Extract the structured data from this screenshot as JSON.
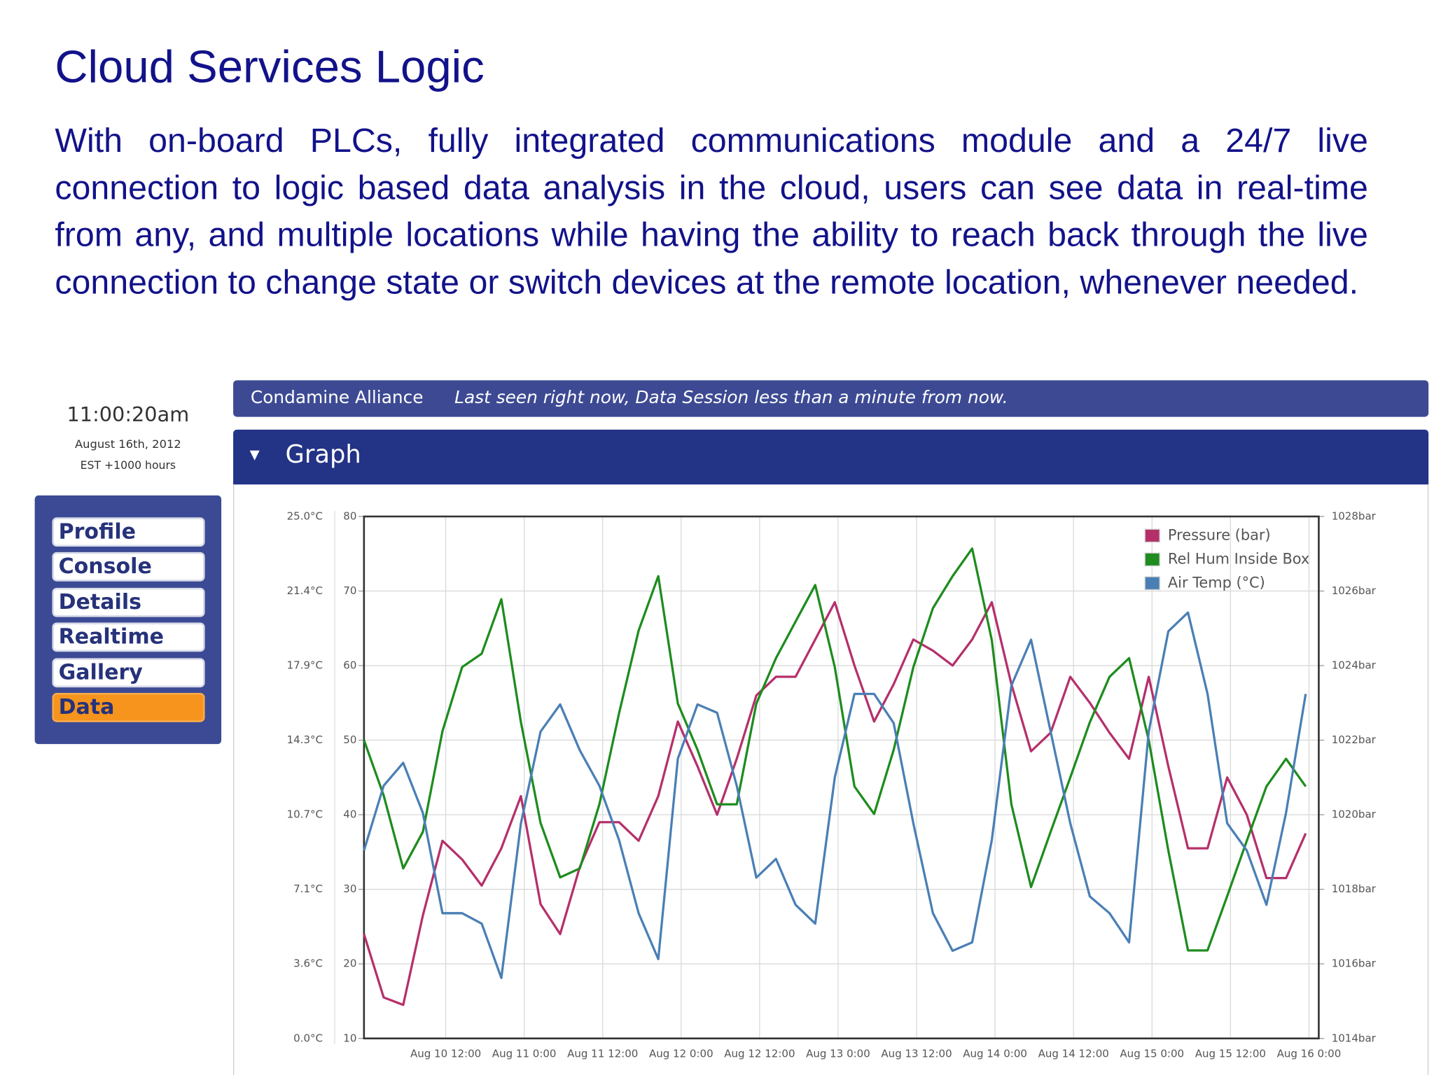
{
  "page": {
    "title": "Cloud Services Logic",
    "paragraph": "With on-board PLCs, fully integrated communications module and a 24/7 live connection to logic based data analysis in the cloud, users can see data in real-time from any, and multiple locations while having the ability to reach back through the live connection to change state or switch devices at the remote location, whenever needed."
  },
  "sidebar": {
    "time": "11:00:20am",
    "date": "August 16th, 2012",
    "timezone": "EST +1000 hours",
    "nav": [
      "Profile",
      "Console",
      "Details",
      "Realtime",
      "Gallery",
      "Data"
    ]
  },
  "header": {
    "site": "Condamine Alliance",
    "status": "Last seen right now, Data Session less than a minute from now."
  },
  "panel": {
    "title": "Graph"
  },
  "chart_data": {
    "type": "line",
    "x": [
      "Aug 9 23:30",
      "Aug 10 2:30",
      "Aug 10 5:30",
      "Aug 10 8:30",
      "Aug 10 11:30",
      "Aug 10 14:30",
      "Aug 10 17:30",
      "Aug 10 20:30",
      "Aug 10 23:30",
      "Aug 11 2:30",
      "Aug 11 5:30",
      "Aug 11 8:30",
      "Aug 11 11:30",
      "Aug 11 14:30",
      "Aug 11 17:30",
      "Aug 11 20:30",
      "Aug 11 23:30",
      "Aug 12 2:30",
      "Aug 12 5:30",
      "Aug 12 8:30",
      "Aug 12 11:30",
      "Aug 12 14:30",
      "Aug 12 17:30",
      "Aug 12 20:30",
      "Aug 12 23:30",
      "Aug 13 2:30",
      "Aug 13 5:30",
      "Aug 13 8:30",
      "Aug 13 11:30",
      "Aug 13 14:30",
      "Aug 13 17:30",
      "Aug 13 20:30",
      "Aug 13 23:30",
      "Aug 14 2:30",
      "Aug 14 5:30",
      "Aug 14 8:30",
      "Aug 14 11:30",
      "Aug 14 14:30",
      "Aug 14 17:30",
      "Aug 14 20:30",
      "Aug 14 23:30",
      "Aug 15 2:30",
      "Aug 15 5:30",
      "Aug 15 8:30",
      "Aug 15 11:30",
      "Aug 15 14:30",
      "Aug 15 17:30",
      "Aug 15 20:30",
      "Aug 15 23:30"
    ],
    "xlim": [
      "Aug 9 23:30",
      "Aug 16 1:30"
    ],
    "xticks": [
      "Aug 10 12:00",
      "Aug 11 0:00",
      "Aug 11 12:00",
      "Aug 12 0:00",
      "Aug 12 12:00",
      "Aug 13 0:00",
      "Aug 13 12:00",
      "Aug 14 0:00",
      "Aug 14 12:00",
      "Aug 15 0:00",
      "Aug 15 12:00",
      "Aug 16 0:00"
    ],
    "ylim": [
      0,
      25
    ],
    "yticks": [
      {
        "value": 0,
        "label": "0.0°C"
      },
      {
        "value": 3.5714,
        "label": "3.6°C"
      },
      {
        "value": 7.1429,
        "label": "7.1°C"
      },
      {
        "value": 10.7143,
        "label": "10.7°C"
      },
      {
        "value": 14.2857,
        "label": "14.3°C"
      },
      {
        "value": 17.8571,
        "label": "17.9°C"
      },
      {
        "value": 21.4286,
        "label": "21.4°C"
      },
      {
        "value": 25,
        "label": "25.0°C"
      }
    ],
    "y3lim": [
      10,
      80
    ],
    "y3ticks": [
      10,
      20,
      30,
      40,
      50,
      60,
      70,
      80
    ],
    "y2lim": [
      1014,
      1028
    ],
    "y2ticks": [
      {
        "value": 1014,
        "label": "1014bar"
      },
      {
        "value": 1016,
        "label": "1016bar"
      },
      {
        "value": 1018,
        "label": "1018bar"
      },
      {
        "value": 1020,
        "label": "1020bar"
      },
      {
        "value": 1022,
        "label": "1022bar"
      },
      {
        "value": 1024,
        "label": "1024bar"
      },
      {
        "value": 1026,
        "label": "1026bar"
      },
      {
        "value": 1028,
        "label": "1028bar"
      }
    ],
    "grid": true,
    "legend": "top-right",
    "series": [
      {
        "name": "Pressure (bar)",
        "color": "#b5306b",
        "axis": "y2",
        "values": [
          1016.8,
          1015.1,
          1014.9,
          1017.3,
          1019.3,
          1018.8,
          1018.1,
          1019.1,
          1020.5,
          1017.6,
          1016.8,
          1018.6,
          1019.8,
          1019.8,
          1019.3,
          1020.5,
          1022.5,
          1021.3,
          1020.0,
          1021.5,
          1023.2,
          1023.7,
          1023.7,
          1024.7,
          1025.7,
          1024.0,
          1022.5,
          1023.5,
          1024.7,
          1024.4,
          1024.0,
          1024.7,
          1025.7,
          1023.5,
          1021.7,
          1022.2,
          1023.7,
          1023.0,
          1022.2,
          1021.5,
          1023.7,
          1021.3,
          1019.1,
          1019.1,
          1021.0,
          1020.0,
          1018.3,
          1018.3,
          1019.5
        ]
      },
      {
        "name": "Rel Hum Inside Box",
        "color": "#1e8c1e",
        "axis": "y3",
        "values": [
          50.0,
          42.6,
          32.8,
          37.7,
          51.2,
          59.8,
          61.6,
          68.9,
          52.4,
          38.9,
          31.6,
          32.8,
          41.4,
          53.6,
          64.7,
          72.0,
          54.9,
          48.7,
          41.4,
          41.4,
          54.9,
          61.0,
          65.9,
          70.8,
          59.8,
          43.8,
          40.1,
          48.7,
          59.8,
          67.7,
          72.0,
          75.7,
          63.4,
          41.4,
          30.3,
          37.7,
          45.0,
          52.4,
          58.5,
          61.0,
          50.0,
          35.2,
          21.8,
          21.8,
          29.1,
          36.5,
          43.8,
          47.5,
          43.8
        ]
      },
      {
        "name": "Air Temp (°C)",
        "color": "#4a7fb5",
        "axis": "y",
        "values": [
          9.0,
          12.1,
          13.2,
          10.8,
          6.0,
          6.0,
          5.5,
          2.9,
          10.3,
          14.7,
          16.0,
          13.8,
          12.1,
          9.5,
          6.0,
          3.8,
          13.4,
          16.0,
          15.6,
          12.1,
          7.7,
          8.6,
          6.4,
          5.5,
          12.5,
          16.5,
          16.5,
          15.1,
          10.3,
          6.0,
          4.2,
          4.6,
          9.5,
          16.9,
          19.1,
          14.7,
          10.3,
          6.8,
          6.0,
          4.6,
          14.7,
          19.5,
          20.4,
          16.5,
          10.3,
          9.0,
          6.4,
          10.8,
          16.5
        ]
      }
    ]
  }
}
